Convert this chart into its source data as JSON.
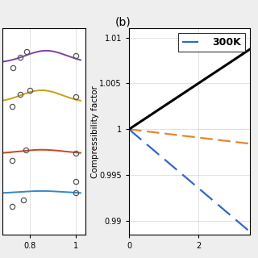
{
  "ylabel_b": "Compressibility factor",
  "yticks_b": [
    0.99,
    0.995,
    1.0,
    1.005,
    1.01
  ],
  "ytick_labels_b": [
    "0.99",
    "0.995",
    "1",
    "1.005",
    "1.01"
  ],
  "xlim_b": [
    0,
    3.5
  ],
  "ylim_b": [
    0.9885,
    1.011
  ],
  "legend_label": "300K",
  "bg_color": "#eeeeee",
  "panel_bg": "#ffffff",
  "left_xlim": [
    0.68,
    1.04
  ],
  "left_ylim": [
    0.988,
    1.013
  ],
  "left_xticks": [
    0.8,
    1.0
  ],
  "purple_color": "#8040a0",
  "gold_color": "#c8a010",
  "red_color": "#cc4422",
  "blue_color": "#3388cc",
  "black_slope": 0.0025,
  "orange_slope": -0.00045,
  "blue_slope": -0.0032,
  "orange_color": "#e08830",
  "blue2_color": "#3366cc"
}
